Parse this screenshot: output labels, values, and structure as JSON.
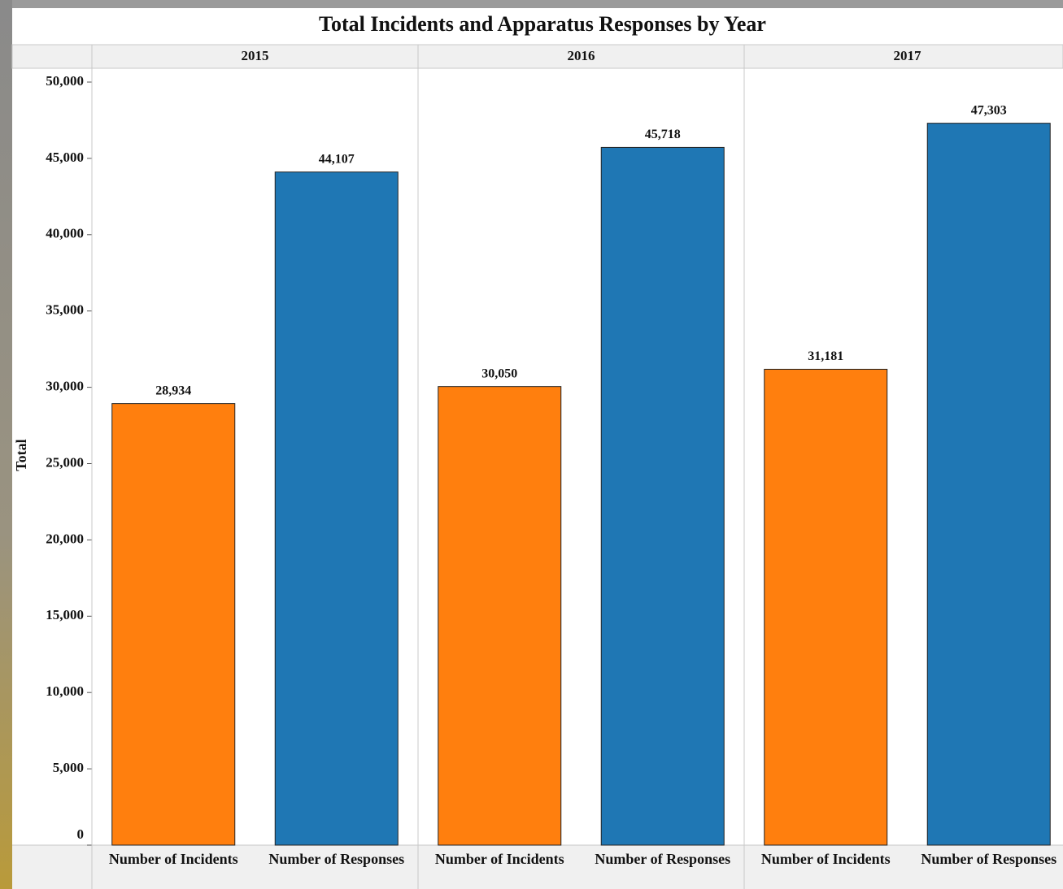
{
  "chart_data": {
    "type": "bar",
    "title": "Total Incidents and Apparatus Responses by Year",
    "y_label": "Total",
    "categories": [
      "2015",
      "2016",
      "2017"
    ],
    "series": [
      {
        "name": "Number of Incidents",
        "color": "#ff7f0e",
        "values": [
          28934,
          30050,
          31181
        ],
        "value_labels": [
          "28,934",
          "30,050",
          "31,181"
        ]
      },
      {
        "name": "Number of Responses",
        "color": "#1f77b4",
        "values": [
          44107,
          45718,
          47303
        ],
        "value_labels": [
          "44,107",
          "45,718",
          "47,303"
        ]
      }
    ],
    "ylim": [
      0,
      50000
    ],
    "yticks": [
      0,
      {
        "value": 5000,
        "label": "5,000"
      },
      {
        "value": 10000,
        "label": "10,000"
      },
      {
        "value": 15000,
        "label": "15,000"
      },
      {
        "value": 20000,
        "label": "20,000"
      },
      {
        "value": 25000,
        "label": "25,000"
      },
      {
        "value": 30000,
        "label": "30,000"
      },
      {
        "value": 35000,
        "label": "35,000"
      },
      {
        "value": 40000,
        "label": "40,000"
      },
      {
        "value": 45000,
        "label": "45,000"
      },
      {
        "value": 50000,
        "label": "50,000"
      }
    ],
    "grid": false
  }
}
